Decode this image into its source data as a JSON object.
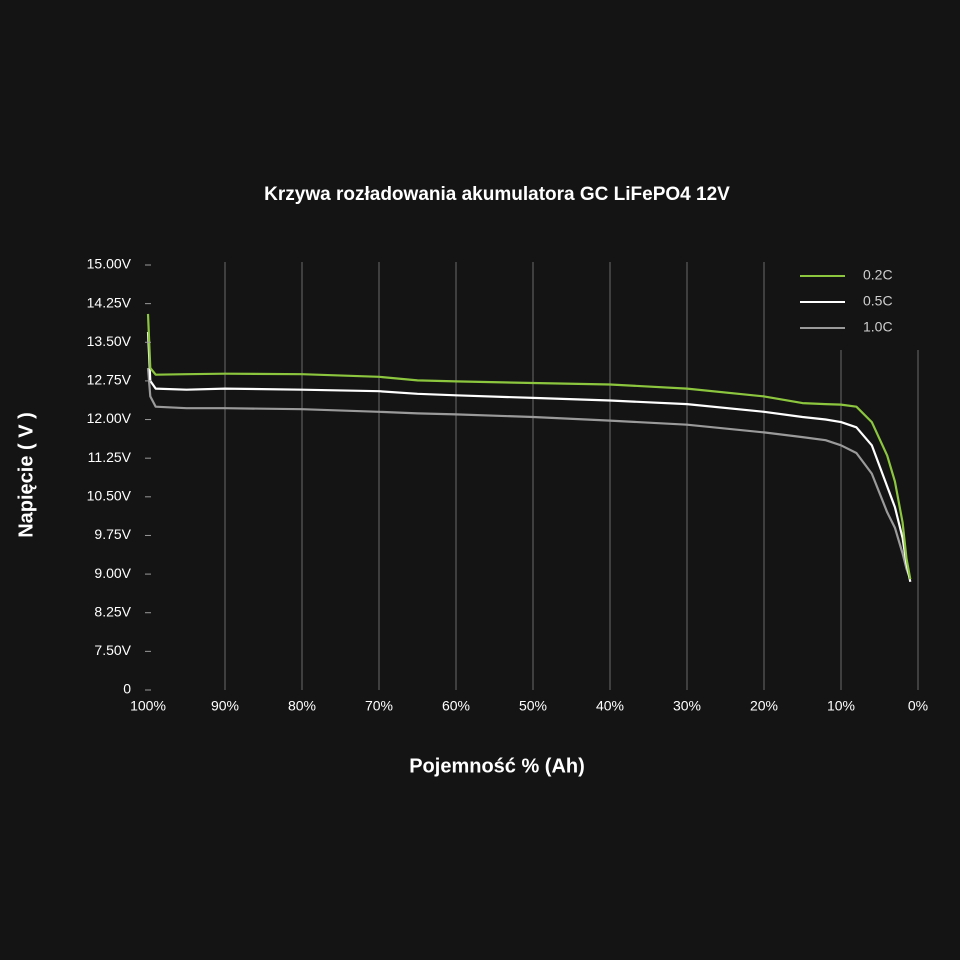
{
  "chart_data": {
    "type": "line",
    "title": "Krzywa rozładowania akumulatora GC LiFePO4 12V",
    "x_label": "Pojemność % (Ah)",
    "y_label": "Napięcie ( V )",
    "x": [
      100,
      99.7,
      99,
      95,
      90,
      80,
      70,
      65,
      60,
      50,
      40,
      30,
      20,
      15,
      12,
      10,
      8,
      6,
      4,
      3,
      2,
      1.5,
      1
    ],
    "series": [
      {
        "name": "0.2C",
        "color": "#8cc63f",
        "values": [
          14.05,
          13.0,
          12.87,
          12.88,
          12.89,
          12.88,
          12.83,
          12.76,
          12.74,
          12.71,
          12.68,
          12.6,
          12.45,
          12.32,
          12.3,
          12.29,
          12.25,
          11.95,
          11.3,
          10.8,
          10.0,
          9.3,
          8.9
        ]
      },
      {
        "name": "0.5C",
        "color": "#ffffff",
        "values": [
          13.7,
          12.75,
          12.6,
          12.58,
          12.6,
          12.58,
          12.55,
          12.5,
          12.47,
          12.42,
          12.37,
          12.3,
          12.15,
          12.05,
          12.0,
          11.95,
          11.85,
          11.5,
          10.7,
          10.3,
          9.7,
          9.2,
          8.85
        ]
      },
      {
        "name": "1.0C",
        "color": "#9a9a9a",
        "values": [
          13.0,
          12.45,
          12.25,
          12.22,
          12.22,
          12.2,
          12.15,
          12.12,
          12.1,
          12.05,
          11.98,
          11.9,
          11.75,
          11.66,
          11.6,
          11.5,
          11.35,
          10.95,
          10.2,
          9.9,
          9.4,
          9.1,
          8.9
        ]
      }
    ],
    "xlim": [
      100,
      0
    ],
    "xticks": [
      {
        "value": 100,
        "label": "100%"
      },
      {
        "value": 90,
        "label": "90%"
      },
      {
        "value": 80,
        "label": "80%"
      },
      {
        "value": 70,
        "label": "70%"
      },
      {
        "value": 60,
        "label": "60%"
      },
      {
        "value": 50,
        "label": "50%"
      },
      {
        "value": 40,
        "label": "40%"
      },
      {
        "value": 30,
        "label": "30%"
      },
      {
        "value": 20,
        "label": "20%"
      },
      {
        "value": 10,
        "label": "10%"
      },
      {
        "value": 0,
        "label": "0%"
      }
    ],
    "ylim": [
      6.75,
      15
    ],
    "y_axis_break": true,
    "yticks": [
      {
        "value": 15,
        "label": "15.00V"
      },
      {
        "value": 14.25,
        "label": "14.25V"
      },
      {
        "value": 13.5,
        "label": "13.50V"
      },
      {
        "value": 12.75,
        "label": "12.75V"
      },
      {
        "value": 12,
        "label": "12.00V"
      },
      {
        "value": 11.25,
        "label": "11.25V"
      },
      {
        "value": 10.5,
        "label": "10.50V"
      },
      {
        "value": 9.75,
        "label": "9.75V"
      },
      {
        "value": 9,
        "label": "9.00V"
      },
      {
        "value": 8.25,
        "label": "8.25V"
      },
      {
        "value": 7.5,
        "label": "7.50V"
      },
      0
    ],
    "grid": true,
    "legend": "upper right"
  }
}
